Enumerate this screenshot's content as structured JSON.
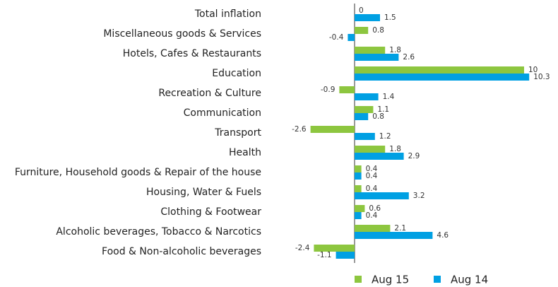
{
  "chart_data": {
    "type": "bar",
    "orientation": "horizontal",
    "categories": [
      "Total inflation",
      "Miscellaneous goods & Services",
      "Hotels, Cafes & Restaurants",
      "Education",
      "Recreation & Culture",
      "Communication",
      "Transport",
      "Health",
      "Furniture, Household goods & Repair of the house",
      "Housing, Water & Fuels",
      "Clothing & Footwear",
      "Alcoholic beverages, Tobacco & Narcotics",
      "Food & Non-alcoholic beverages"
    ],
    "series": [
      {
        "name": "Aug 15",
        "color": "#8dc63f",
        "values": [
          0,
          0.8,
          1.8,
          10,
          -0.9,
          1.1,
          -2.6,
          1.8,
          0.4,
          0.4,
          0.6,
          2.1,
          -2.4
        ]
      },
      {
        "name": "Aug 14",
        "color": "#00a0e3",
        "values": [
          1.5,
          -0.4,
          2.6,
          10.3,
          1.4,
          0.8,
          1.2,
          2.9,
          0.4,
          3.2,
          0.4,
          4.6,
          -1.1
        ]
      }
    ],
    "legend": "bottom"
  }
}
